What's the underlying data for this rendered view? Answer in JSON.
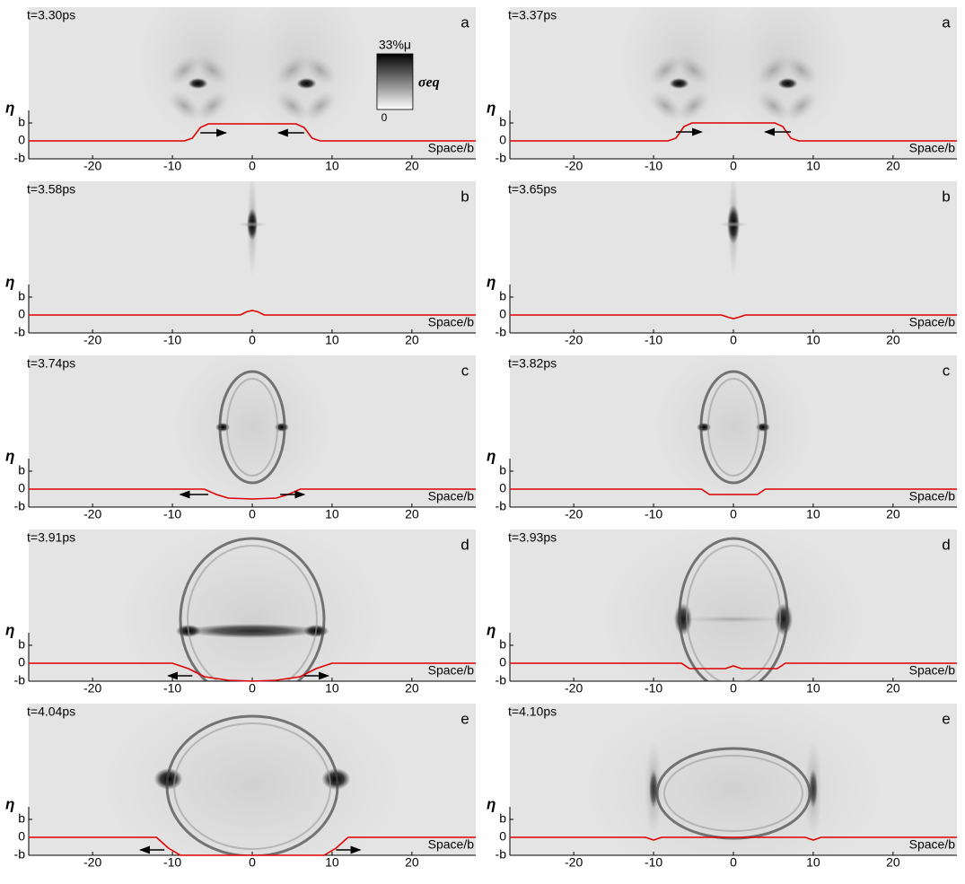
{
  "chart_data": [
    {
      "type": "line",
      "title": "t=3.30ps",
      "panel_label": "a",
      "x_label": "Space/b",
      "y_label": "η",
      "xlim": [
        -28,
        28
      ],
      "ylim": [
        -1,
        7.45
      ],
      "xticks": [
        -20,
        -10,
        0,
        10,
        20
      ],
      "yticks": [
        {
          "value": 1,
          "label": "b"
        },
        0,
        {
          "value": -1,
          "label": "-b"
        }
      ],
      "color": "#e00000",
      "x": [
        -28,
        -8.5,
        -7.5,
        -6.5,
        -5.5,
        5.5,
        6.5,
        7.5,
        8.5,
        28
      ],
      "values": [
        0,
        0,
        0.15,
        0.75,
        0.95,
        0.95,
        0.75,
        0.15,
        0,
        0
      ],
      "colorbar": {
        "max_label": "33%μ",
        "label": "σeq",
        "min_label": "0"
      }
    },
    {
      "type": "line",
      "title": "t=3.37ps",
      "panel_label": "a",
      "x_label": "Space/b",
      "y_label": "η",
      "xlim": [
        -28,
        28
      ],
      "ylim": [
        -1,
        7.45
      ],
      "xticks": [
        -20,
        -10,
        0,
        10,
        20
      ],
      "yticks": [
        {
          "value": 1,
          "label": "b"
        },
        0,
        {
          "value": -1,
          "label": "-b"
        }
      ],
      "color": "#e00000",
      "x": [
        -28,
        -8.2,
        -7.2,
        -6.2,
        -5.2,
        5.2,
        6.2,
        7.2,
        8.2,
        28
      ],
      "values": [
        0,
        0,
        0.15,
        0.8,
        1,
        1,
        0.8,
        0.15,
        0,
        0
      ]
    },
    {
      "type": "line",
      "title": "t=3.58ps",
      "panel_label": "b",
      "x_label": "Space/b",
      "y_label": "η",
      "xlim": [
        -28,
        28
      ],
      "ylim": [
        -1,
        7.45
      ],
      "xticks": [
        -20,
        -10,
        0,
        10,
        20
      ],
      "yticks": [
        {
          "value": 1,
          "label": "b"
        },
        0,
        {
          "value": -1,
          "label": "-b"
        }
      ],
      "color": "#e00000",
      "x": [
        -28,
        -1.5,
        -0.7,
        0,
        0.7,
        1.5,
        28
      ],
      "values": [
        0,
        0,
        0.18,
        0.25,
        0.18,
        0,
        0
      ]
    },
    {
      "type": "line",
      "title": "t=3.65ps",
      "panel_label": "b",
      "x_label": "Space/b",
      "y_label": "η",
      "xlim": [
        -28,
        28
      ],
      "ylim": [
        -1,
        7.45
      ],
      "xticks": [
        -20,
        -10,
        0,
        10,
        20
      ],
      "yticks": [
        {
          "value": 1,
          "label": "b"
        },
        0,
        {
          "value": -1,
          "label": "-b"
        }
      ],
      "color": "#e00000",
      "x": [
        -28,
        -1.5,
        -0.7,
        0,
        0.7,
        1.5,
        28
      ],
      "values": [
        0,
        0,
        -0.12,
        -0.2,
        -0.12,
        0,
        0
      ]
    },
    {
      "type": "line",
      "title": "t=3.74ps",
      "panel_label": "c",
      "x_label": "Space/b",
      "y_label": "η",
      "xlim": [
        -28,
        28
      ],
      "ylim": [
        -1,
        7.45
      ],
      "xticks": [
        -20,
        -10,
        0,
        10,
        20
      ],
      "yticks": [
        {
          "value": 1,
          "label": "b"
        },
        0,
        {
          "value": -1,
          "label": "-b"
        }
      ],
      "color": "#e00000",
      "x": [
        -28,
        -6,
        -4.5,
        -3,
        0,
        3,
        4.5,
        6,
        28
      ],
      "values": [
        0,
        0,
        -0.3,
        -0.5,
        -0.55,
        -0.5,
        -0.3,
        0,
        0
      ]
    },
    {
      "type": "line",
      "title": "t=3.82ps",
      "panel_label": "c",
      "x_label": "Space/b",
      "y_label": "η",
      "xlim": [
        -28,
        28
      ],
      "ylim": [
        -1,
        7.45
      ],
      "xticks": [
        -20,
        -10,
        0,
        10,
        20
      ],
      "yticks": [
        {
          "value": 1,
          "label": "b"
        },
        0,
        {
          "value": -1,
          "label": "-b"
        }
      ],
      "color": "#e00000",
      "x": [
        -28,
        -4,
        -3,
        3,
        4,
        28
      ],
      "values": [
        0,
        0,
        -0.3,
        -0.3,
        0,
        0
      ]
    },
    {
      "type": "line",
      "title": "t=3.91ps",
      "panel_label": "d",
      "x_label": "Space/b",
      "y_label": "η",
      "xlim": [
        -28,
        28
      ],
      "ylim": [
        -1,
        7.45
      ],
      "xticks": [
        -20,
        -10,
        0,
        10,
        20
      ],
      "yticks": [
        {
          "value": 1,
          "label": "b"
        },
        0,
        {
          "value": -1,
          "label": "-b"
        }
      ],
      "color": "#e00000",
      "x": [
        -28,
        -10,
        -8,
        -6,
        -3,
        0,
        3,
        6,
        8,
        10,
        28
      ],
      "values": [
        0,
        0,
        -0.3,
        -0.75,
        -0.95,
        -1,
        -0.95,
        -0.75,
        -0.3,
        0,
        0
      ]
    },
    {
      "type": "line",
      "title": "t=3.93ps",
      "panel_label": "d",
      "x_label": "Space/b",
      "y_label": "η",
      "xlim": [
        -28,
        28
      ],
      "ylim": [
        -1,
        7.45
      ],
      "xticks": [
        -20,
        -10,
        0,
        10,
        20
      ],
      "yticks": [
        {
          "value": 1,
          "label": "b"
        },
        0,
        {
          "value": -1,
          "label": "-b"
        }
      ],
      "color": "#e00000",
      "x": [
        -28,
        -6.5,
        -5.5,
        -1,
        0,
        1,
        5.5,
        6.5,
        28
      ],
      "values": [
        0,
        0,
        -0.3,
        -0.3,
        -0.15,
        -0.3,
        -0.3,
        0,
        0
      ]
    },
    {
      "type": "line",
      "title": "t=4.04ps",
      "panel_label": "e",
      "x_label": "Space/b",
      "y_label": "η",
      "xlim": [
        -28,
        28
      ],
      "ylim": [
        -1,
        7.45
      ],
      "xticks": [
        -20,
        -10,
        0,
        10,
        20
      ],
      "yticks": [
        {
          "value": 1,
          "label": "b"
        },
        0,
        {
          "value": -1,
          "label": "-b"
        }
      ],
      "color": "#e00000",
      "x": [
        -28,
        -12,
        -10.5,
        -9,
        9,
        10.5,
        12,
        28
      ],
      "values": [
        0,
        0,
        -0.6,
        -1,
        -1,
        -0.6,
        0,
        0
      ]
    },
    {
      "type": "line",
      "title": "t=4.10ps",
      "panel_label": "e",
      "x_label": "Space/b",
      "y_label": "η",
      "xlim": [
        -28,
        28
      ],
      "ylim": [
        -1,
        7.45
      ],
      "xticks": [
        -20,
        -10,
        0,
        10,
        20
      ],
      "yticks": [
        {
          "value": 1,
          "label": "b"
        },
        0,
        {
          "value": -1,
          "label": "-b"
        }
      ],
      "color": "#e00000",
      "x": [
        -28,
        -11,
        -10,
        -9,
        9,
        10,
        11,
        28
      ],
      "values": [
        0,
        0,
        -0.15,
        0,
        0,
        -0.15,
        0,
        0
      ]
    }
  ]
}
